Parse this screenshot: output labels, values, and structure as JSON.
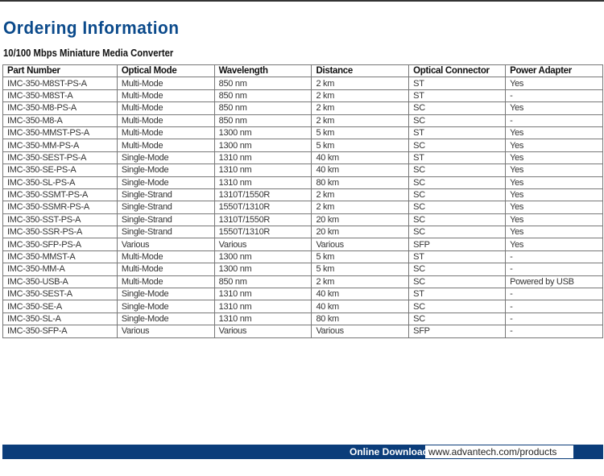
{
  "title": "Ordering Information",
  "subtitle": "10/100 Mbps Miniature Media Converter",
  "table": {
    "headers": [
      "Part Number",
      "Optical Mode",
      "Wavelength",
      "Distance",
      "Optical Connector",
      "Power Adapter"
    ],
    "rows": [
      [
        "IMC-350-M8ST-PS-A",
        "Multi-Mode",
        "850 nm",
        "2 km",
        "ST",
        "Yes"
      ],
      [
        "IMC-350-M8ST-A",
        "Multi-Mode",
        "850 nm",
        "2 km",
        "ST",
        "-"
      ],
      [
        "IMC-350-M8-PS-A",
        "Multi-Mode",
        "850 nm",
        "2 km",
        "SC",
        "Yes"
      ],
      [
        "IMC-350-M8-A",
        "Multi-Mode",
        "850 nm",
        "2 km",
        "SC",
        "-"
      ],
      [
        "IMC-350-MMST-PS-A",
        "Multi-Mode",
        "1300 nm",
        "5 km",
        "ST",
        "Yes"
      ],
      [
        "IMC-350-MM-PS-A",
        "Multi-Mode",
        "1300 nm",
        "5 km",
        "SC",
        "Yes"
      ],
      [
        "IMC-350-SEST-PS-A",
        "Single-Mode",
        "1310 nm",
        "40 km",
        "ST",
        "Yes"
      ],
      [
        "IMC-350-SE-PS-A",
        "Single-Mode",
        "1310 nm",
        "40 km",
        "SC",
        "Yes"
      ],
      [
        "IMC-350-SL-PS-A",
        "Single-Mode",
        "1310 nm",
        "80 km",
        "SC",
        "Yes"
      ],
      [
        "IMC-350-SSMT-PS-A",
        "Single-Strand",
        "1310T/1550R",
        "2 km",
        "SC",
        "Yes"
      ],
      [
        "IMC-350-SSMR-PS-A",
        "Single-Strand",
        "1550T/1310R",
        "2 km",
        "SC",
        "Yes"
      ],
      [
        "IMC-350-SST-PS-A",
        "Single-Strand",
        "1310T/1550R",
        "20 km",
        "SC",
        "Yes"
      ],
      [
        "IMC-350-SSR-PS-A",
        "Single-Strand",
        "1550T/1310R",
        "20 km",
        "SC",
        "Yes"
      ],
      [
        "IMC-350-SFP-PS-A",
        "Various",
        "Various",
        "Various",
        "SFP",
        "Yes"
      ],
      [
        "IMC-350-MMST-A",
        "Multi-Mode",
        "1300 nm",
        "5 km",
        "ST",
        "-"
      ],
      [
        "IMC-350-MM-A",
        "Multi-Mode",
        "1300 nm",
        "5 km",
        "SC",
        "-"
      ],
      [
        "IMC-350-USB-A",
        "Multi-Mode",
        "850 nm",
        "2 km",
        "SC",
        "Powered by USB"
      ],
      [
        "IMC-350-SEST-A",
        "Single-Mode",
        "1310 nm",
        "40 km",
        "ST",
        "-"
      ],
      [
        "IMC-350-SE-A",
        "Single-Mode",
        "1310 nm",
        "40 km",
        "SC",
        "-"
      ],
      [
        "IMC-350-SL-A",
        "Single-Mode",
        "1310 nm",
        "80 km",
        "SC",
        "-"
      ],
      [
        "IMC-350-SFP-A",
        "Various",
        "Various",
        "Various",
        "SFP",
        "-"
      ]
    ]
  },
  "footer": {
    "label": "Online Download",
    "url": "www.advantech.com/products"
  },
  "colors": {
    "brand": "#0b3d7a",
    "title": "#0b4a8b"
  }
}
